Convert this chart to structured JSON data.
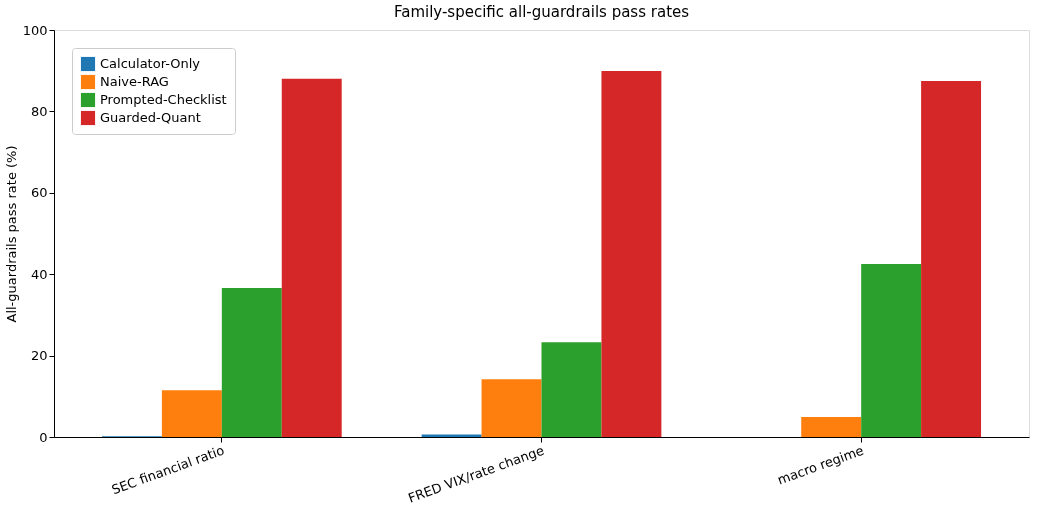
{
  "chart_data": {
    "type": "bar",
    "title": "Family-specific all-guardrails pass rates",
    "ylabel": "All-guardrails pass rate (%)",
    "categories": [
      "SEC financial ratio",
      "FRED VIX/rate change",
      "macro regime"
    ],
    "series": [
      {
        "name": "Calculator-Only",
        "color": "#1f77b4",
        "values": [
          0.2,
          0.6,
          0
        ]
      },
      {
        "name": "Naive-RAG",
        "color": "#ff7f0e",
        "values": [
          11.5,
          14.2,
          4.9
        ]
      },
      {
        "name": "Prompted-Checklist",
        "color": "#2ca02c",
        "values": [
          36.6,
          23.3,
          42.5
        ]
      },
      {
        "name": "Guarded-Quant",
        "color": "#d62728",
        "values": [
          88.0,
          89.9,
          87.5
        ]
      }
    ],
    "ylim": [
      0,
      100
    ],
    "yticks": [
      0,
      20,
      40,
      60,
      80,
      100
    ],
    "grid": false,
    "legend": "top left"
  }
}
